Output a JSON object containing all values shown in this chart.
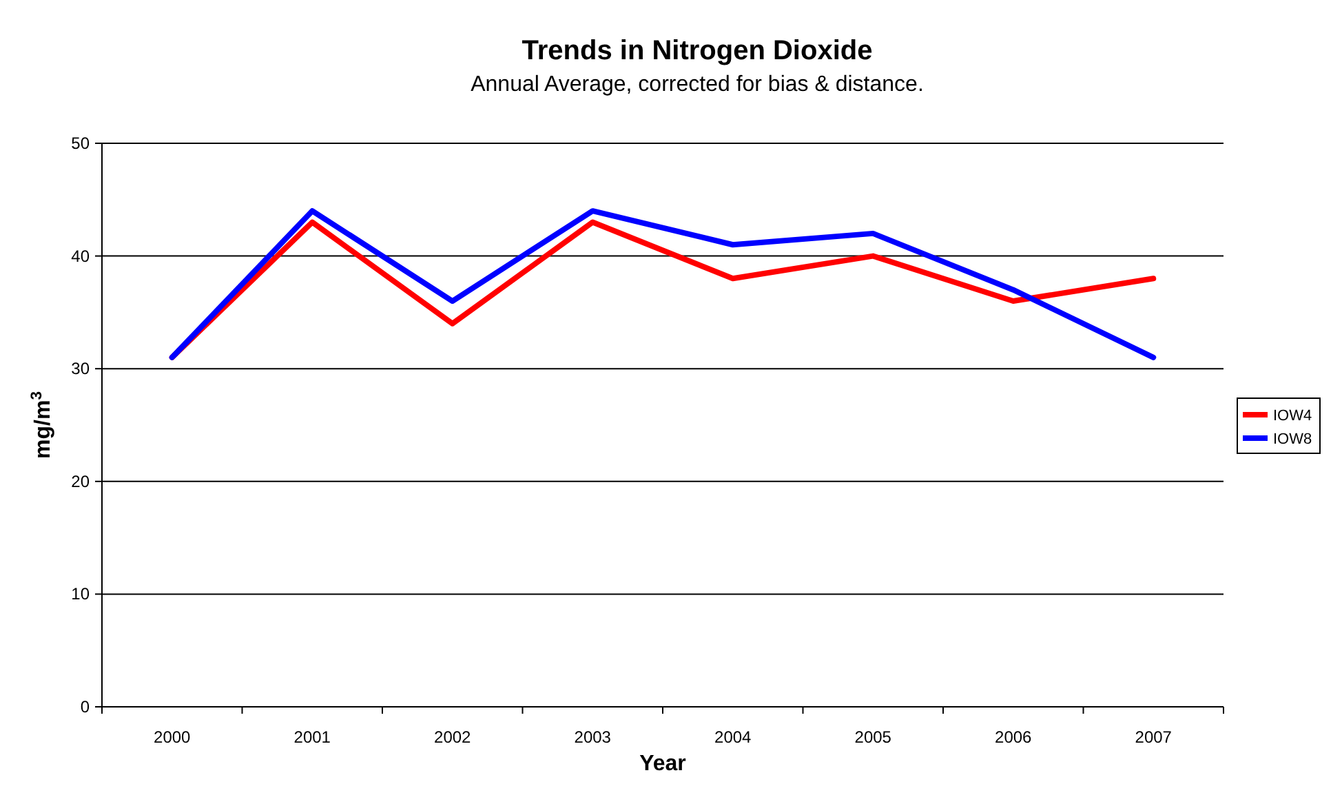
{
  "chart_data": {
    "type": "line",
    "title": "Trends in Nitrogen Dioxide",
    "subtitle": "Annual Average, corrected for bias & distance.",
    "xlabel": "Year",
    "ylabel": "mg/m$^{3}$",
    "categories": [
      "2000",
      "2001",
      "2002",
      "2003",
      "2004",
      "2005",
      "2006",
      "2007"
    ],
    "series": [
      {
        "name": "IOW4",
        "color": "#ff0000",
        "values": [
          31,
          43,
          34,
          43,
          38,
          40,
          36,
          38
        ]
      },
      {
        "name": "IOW8",
        "color": "#0000ff",
        "values": [
          31,
          44,
          36,
          44,
          41,
          42,
          37,
          31
        ]
      }
    ],
    "ylim": [
      0,
      50
    ],
    "yticks": [
      0,
      10,
      20,
      30,
      40,
      50
    ],
    "grid": "y",
    "legend": "right",
    "marker": "none",
    "line_style": "solid"
  }
}
